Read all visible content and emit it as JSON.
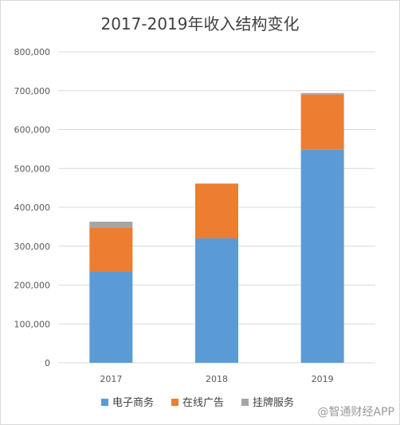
{
  "chart_data": {
    "type": "bar",
    "stacked": true,
    "title": "2017-2019年收入结构变化",
    "categories": [
      "2017",
      "2018",
      "2019"
    ],
    "series": [
      {
        "name": "电子商务",
        "color": "#5b9bd5",
        "values": [
          235000,
          320000,
          548000
        ]
      },
      {
        "name": "在线广告",
        "color": "#ed7d31",
        "values": [
          113000,
          140000,
          142000
        ]
      },
      {
        "name": "挂牌服务",
        "color": "#a5a5a5",
        "values": [
          15000,
          1500,
          4000
        ]
      }
    ],
    "ylim": [
      0,
      800000
    ],
    "yticks": [
      "0",
      "100,000",
      "200,000",
      "300,000",
      "400,000",
      "500,000",
      "600,000",
      "700,000",
      "800,000"
    ],
    "ytick_values": [
      0,
      100000,
      200000,
      300000,
      400000,
      500000,
      600000,
      700000,
      800000
    ],
    "grid": true,
    "legend_position": "bottom",
    "xlabel": "",
    "ylabel": ""
  },
  "watermark": "@智通财经APP"
}
